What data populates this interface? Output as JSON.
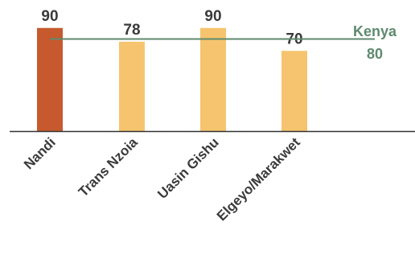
{
  "chart_data": {
    "type": "bar",
    "title": "",
    "xlabel": "",
    "ylabel": "",
    "categories": [
      "Nandi",
      "Trans Nzoia",
      "Uasin Gishu",
      "Elgeyo/Marakwet"
    ],
    "series": [
      {
        "values": [
          90,
          78,
          90,
          70
        ],
        "colors": [
          "#c65a2e",
          "#f6c46e",
          "#f6c46e",
          "#f6c46e"
        ]
      }
    ],
    "data_labels": [
      "90",
      "78",
      "90",
      "70"
    ],
    "ylim": [
      0,
      100
    ],
    "grid": false,
    "reference_line": {
      "label": "Kenya",
      "value_label": "80",
      "value": 80,
      "color": "#5e8a6e"
    },
    "axis_color": "#333333",
    "label_color": "#3a3a3a"
  }
}
